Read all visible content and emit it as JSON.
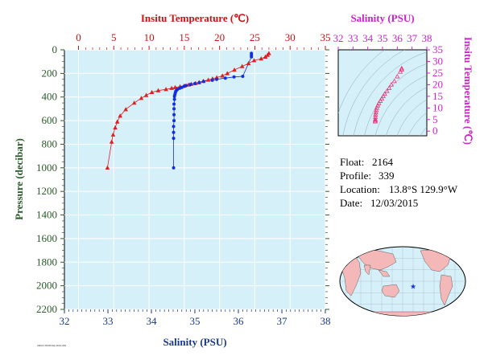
{
  "chart_data": [
    {
      "type": "line",
      "name": "main-profile",
      "top_axis_title": "Insitu Temperature (℃)",
      "bottom_axis_title": "Salinity (PSU)",
      "left_axis_title": "Pressure (decibar)",
      "temperature_range": [
        -2,
        35
      ],
      "temperature_ticks": [
        0,
        5,
        10,
        15,
        20,
        25,
        30,
        35
      ],
      "salinity_range": [
        32,
        38
      ],
      "salinity_ticks": [
        32,
        33,
        34,
        35,
        36,
        37,
        38
      ],
      "pressure_range": [
        0,
        2200
      ],
      "pressure_ticks": [
        0,
        200,
        400,
        600,
        800,
        1000,
        1200,
        1400,
        1600,
        1800,
        2000,
        2200
      ],
      "y_inverted": true,
      "temperature_color": "#e02020",
      "salinity_color": "#1030e0",
      "plot_background": "#d6f0fa",
      "series": [
        {
          "name": "temperature",
          "marker": "triangle",
          "points": [
            [
              27.0,
              30
            ],
            [
              26.8,
              45
            ],
            [
              26.5,
              60
            ],
            [
              25.9,
              75
            ],
            [
              24.9,
              90
            ],
            [
              24.1,
              115
            ],
            [
              23.2,
              140
            ],
            [
              22.1,
              170
            ],
            [
              21.1,
              200
            ],
            [
              20.4,
              220
            ],
            [
              19.6,
              235
            ],
            [
              19.0,
              245
            ],
            [
              18.4,
              255
            ],
            [
              17.7,
              265
            ],
            [
              17.1,
              275
            ],
            [
              16.6,
              283
            ],
            [
              16.0,
              290
            ],
            [
              15.6,
              297
            ],
            [
              15.0,
              305
            ],
            [
              14.4,
              312
            ],
            [
              13.7,
              318
            ],
            [
              13.2,
              325
            ],
            [
              12.4,
              335
            ],
            [
              11.3,
              345
            ],
            [
              10.4,
              360
            ],
            [
              9.6,
              385
            ],
            [
              8.9,
              410
            ],
            [
              7.9,
              450
            ],
            [
              6.7,
              505
            ],
            [
              5.9,
              560
            ],
            [
              5.5,
              610
            ],
            [
              5.2,
              660
            ],
            [
              4.9,
              720
            ],
            [
              4.7,
              780
            ],
            [
              4.1,
              1000
            ]
          ]
        },
        {
          "name": "salinity",
          "marker": "circle",
          "points": [
            [
              36.3,
              30
            ],
            [
              36.3,
              45
            ],
            [
              36.3,
              60
            ],
            [
              36.1,
              225
            ],
            [
              35.9,
              230
            ],
            [
              35.7,
              240
            ],
            [
              35.5,
              250
            ],
            [
              35.4,
              258
            ],
            [
              35.2,
              268
            ],
            [
              35.1,
              278
            ],
            [
              35.0,
              286
            ],
            [
              34.9,
              294
            ],
            [
              34.8,
              302
            ],
            [
              34.75,
              310
            ],
            [
              34.7,
              318
            ],
            [
              34.65,
              326
            ],
            [
              34.6,
              334
            ],
            [
              34.58,
              342
            ],
            [
              34.56,
              352
            ],
            [
              34.55,
              365
            ],
            [
              34.54,
              380
            ],
            [
              34.53,
              395
            ],
            [
              34.53,
              420
            ],
            [
              34.52,
              460
            ],
            [
              34.52,
              500
            ],
            [
              34.52,
              550
            ],
            [
              34.52,
              600
            ],
            [
              34.51,
              650
            ],
            [
              34.51,
              700
            ],
            [
              34.51,
              750
            ],
            [
              34.51,
              1000
            ]
          ]
        }
      ]
    },
    {
      "type": "scatter",
      "name": "ts-diagram",
      "x_axis_title": "Salinity (PSU)",
      "y_axis_title": "Insitu Temperature (℃)",
      "x_range": [
        32,
        38
      ],
      "x_ticks": [
        32,
        33,
        34,
        35,
        36,
        37,
        38
      ],
      "y_range": [
        -2,
        35
      ],
      "y_ticks": [
        0,
        5,
        10,
        15,
        20,
        25,
        30,
        35
      ],
      "axis_color": "#cc22cc",
      "marker_color": "#ee3377",
      "plot_background": "#d6f0fa",
      "points": [
        [
          36.3,
          27.0
        ],
        [
          36.3,
          26.5
        ],
        [
          36.2,
          25.5
        ],
        [
          36.0,
          23.5
        ],
        [
          35.8,
          21.5
        ],
        [
          35.6,
          20.0
        ],
        [
          35.45,
          18.5
        ],
        [
          35.3,
          17.2
        ],
        [
          35.15,
          16.0
        ],
        [
          35.05,
          15.0
        ],
        [
          34.95,
          14.0
        ],
        [
          34.85,
          13.0
        ],
        [
          34.75,
          12.0
        ],
        [
          34.68,
          11.0
        ],
        [
          34.62,
          10.0
        ],
        [
          34.58,
          9.0
        ],
        [
          34.55,
          8.0
        ],
        [
          34.53,
          7.0
        ],
        [
          34.52,
          6.0
        ],
        [
          34.51,
          5.0
        ],
        [
          34.51,
          4.5
        ],
        [
          34.5,
          4.1
        ]
      ]
    }
  ],
  "info": {
    "float_label": "Float:",
    "float_value": "2164",
    "profile_label": "Profile:",
    "profile_value": "339",
    "location_label": "Location:",
    "location_value": "13.8°S  129.9°W",
    "date_label": "Date:",
    "date_value": "12/03/2015"
  },
  "map": {
    "float_lon": -129.9,
    "float_lat": -13.8,
    "marker_color": "#1030e0",
    "land_color": "#f4b8b8",
    "ocean_color": "#d6f0fa"
  },
  "footer": {
    "credit": "ARGO PROFILE  2164-339"
  }
}
